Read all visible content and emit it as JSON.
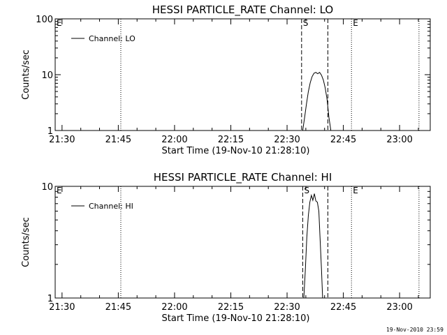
{
  "chart_data": [
    {
      "type": "line",
      "title": "HESSI PARTICLE_RATE Channel: LO",
      "xlabel": "Start Time (19-Nov-10 21:28:10)",
      "ylabel": "Counts/sec",
      "x_tick_labels": [
        "21:30",
        "21:45",
        "22:00",
        "22:15",
        "22:30",
        "22:45",
        "23:00"
      ],
      "x_ticks_min": [
        1.83,
        16.83,
        31.83,
        46.83,
        61.83,
        76.83,
        91.83
      ],
      "xlim_min": [
        0,
        100
      ],
      "yscale": "log",
      "ylim": [
        1,
        100
      ],
      "y_tick_labels": [
        "1",
        "10",
        "100"
      ],
      "y_ticks": [
        1,
        10,
        100
      ],
      "legend_location": "top-left",
      "series": [
        {
          "name": "Channel: LO",
          "x_min": [
            66.0,
            66.5,
            67.0,
            67.5,
            68.0,
            68.5,
            69.0,
            69.5,
            70.0,
            70.5,
            71.0,
            71.5,
            72.0,
            72.5,
            73.0,
            73.5
          ],
          "values": [
            1.0,
            1.7,
            3.0,
            5.0,
            7.2,
            9.2,
            10.6,
            11.0,
            10.4,
            11.0,
            9.8,
            8.0,
            5.8,
            3.6,
            1.7,
            1.0
          ]
        }
      ],
      "vlines": [
        {
          "x_min": 17.5,
          "style": "dotted",
          "label": ""
        },
        {
          "x_min": 65.7,
          "style": "dashed",
          "label": "S"
        },
        {
          "x_min": 72.7,
          "style": "dashed",
          "label": ""
        },
        {
          "x_min": 79.0,
          "style": "dotted",
          "label": "E"
        },
        {
          "x_min": 97.0,
          "style": "dotted",
          "label": ""
        }
      ],
      "corner_label": "E"
    },
    {
      "type": "line",
      "title": "HESSI PARTICLE_RATE Channel: HI",
      "xlabel": "Start Time (19-Nov-10 21:28:10)",
      "ylabel": "Counts/sec",
      "x_tick_labels": [
        "21:30",
        "21:45",
        "22:00",
        "22:15",
        "22:30",
        "22:45",
        "23:00"
      ],
      "x_ticks_min": [
        1.83,
        16.83,
        31.83,
        46.83,
        61.83,
        76.83,
        91.83
      ],
      "xlim_min": [
        0,
        100
      ],
      "yscale": "log",
      "ylim": [
        1,
        10
      ],
      "y_tick_labels": [
        "1",
        "10"
      ],
      "y_ticks": [
        1,
        10
      ],
      "legend_location": "top-left",
      "series": [
        {
          "name": "Channel: HI",
          "x_min": [
            66.3,
            66.7,
            67.1,
            67.5,
            67.9,
            68.3,
            68.7,
            69.1,
            69.5,
            69.9,
            70.3,
            70.6,
            71.0,
            71.3
          ],
          "values": [
            1.0,
            1.8,
            3.5,
            5.5,
            7.2,
            8.3,
            7.5,
            8.6,
            7.4,
            7.2,
            6.0,
            3.6,
            1.8,
            1.0
          ]
        }
      ],
      "vlines": [
        {
          "x_min": 17.5,
          "style": "dotted",
          "label": ""
        },
        {
          "x_min": 66.0,
          "style": "dashed",
          "label": "S"
        },
        {
          "x_min": 72.7,
          "style": "dashed",
          "label": ""
        },
        {
          "x_min": 79.0,
          "style": "dotted",
          "label": "E"
        },
        {
          "x_min": 97.0,
          "style": "dotted",
          "label": ""
        }
      ],
      "corner_label": "E"
    }
  ],
  "footer": {
    "timestamp": "19-Nov-2010 23:59"
  }
}
